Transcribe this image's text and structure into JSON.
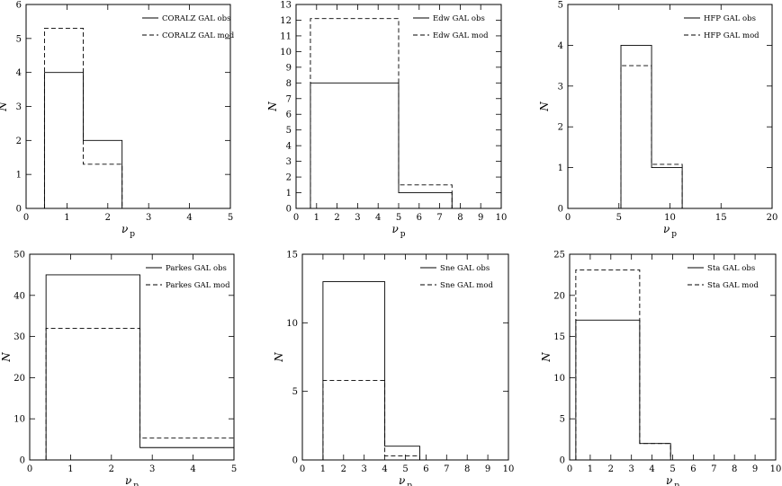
{
  "chart_data": [
    {
      "type": "histogram",
      "xlim": [
        0,
        5
      ],
      "ylim": [
        0,
        6
      ],
      "xticks": [
        0,
        1,
        2,
        3,
        4,
        5
      ],
      "yticks": [
        0,
        1,
        2,
        3,
        4,
        5,
        6
      ],
      "xlabel": "νp",
      "ylabel": "N",
      "legend": "top-right",
      "series": [
        {
          "name": "CORALZ GAL obs",
          "style": "solid",
          "bins": [
            [
              0.45,
              1.4,
              4
            ],
            [
              1.4,
              2.35,
              2
            ]
          ]
        },
        {
          "name": "CORALZ GAL mod",
          "style": "dashed",
          "bins": [
            [
              0.45,
              1.4,
              5.3
            ],
            [
              1.4,
              2.35,
              1.3
            ],
            [
              2.35,
              3.3,
              0
            ]
          ]
        }
      ]
    },
    {
      "type": "histogram",
      "xlim": [
        0,
        10
      ],
      "ylim": [
        0,
        13
      ],
      "xticks": [
        0,
        1,
        2,
        3,
        4,
        5,
        6,
        7,
        8,
        9,
        10
      ],
      "yticks": [
        0,
        1,
        2,
        3,
        4,
        5,
        6,
        7,
        8,
        9,
        10,
        11,
        12,
        13
      ],
      "xlabel": "νp",
      "ylabel": "N",
      "legend": "top-right",
      "series": [
        {
          "name": "Edw GAL obs",
          "style": "solid",
          "bins": [
            [
              0.7,
              5.0,
              8
            ],
            [
              5.0,
              7.6,
              1
            ]
          ]
        },
        {
          "name": "Edw GAL mod",
          "style": "dashed",
          "bins": [
            [
              0.7,
              5.0,
              12.1
            ],
            [
              5.0,
              7.6,
              1.5
            ]
          ]
        }
      ]
    },
    {
      "type": "histogram",
      "xlim": [
        0,
        20
      ],
      "ylim": [
        0,
        5
      ],
      "xticks": [
        0,
        5,
        10,
        15,
        20
      ],
      "yticks": [
        0,
        1,
        2,
        3,
        4,
        5
      ],
      "xlabel": "νp",
      "ylabel": "N",
      "legend": "top-right",
      "series": [
        {
          "name": "HFP GAL obs",
          "style": "solid",
          "bins": [
            [
              5.2,
              8.2,
              4
            ],
            [
              8.2,
              11.2,
              1
            ]
          ]
        },
        {
          "name": "HFP GAL mod",
          "style": "dashed",
          "bins": [
            [
              5.2,
              8.2,
              3.5
            ],
            [
              8.2,
              11.2,
              1.08
            ]
          ]
        }
      ]
    },
    {
      "type": "histogram",
      "xlim": [
        0,
        5
      ],
      "ylim": [
        0,
        50
      ],
      "xticks": [
        0,
        1,
        2,
        3,
        4,
        5
      ],
      "yticks": [
        0,
        10,
        20,
        30,
        40,
        50
      ],
      "xlabel": "νp",
      "ylabel": "N",
      "legend": "top-right",
      "series": [
        {
          "name": "Parkes GAL obs",
          "style": "solid",
          "bins": [
            [
              0.4,
              2.7,
              45
            ],
            [
              2.7,
              5.0,
              3
            ]
          ]
        },
        {
          "name": "Parkes GAL mod",
          "style": "dashed",
          "bins": [
            [
              0.4,
              2.7,
              32
            ],
            [
              2.7,
              5.0,
              5.3
            ]
          ]
        }
      ]
    },
    {
      "type": "histogram",
      "xlim": [
        0,
        10
      ],
      "ylim": [
        0,
        15
      ],
      "xticks": [
        0,
        1,
        2,
        3,
        4,
        5,
        6,
        7,
        8,
        9,
        10
      ],
      "yticks": [
        0,
        5,
        10,
        15
      ],
      "xlabel": "νp",
      "ylabel": "N",
      "legend": "top-right",
      "series": [
        {
          "name": "Sne GAL obs",
          "style": "solid",
          "bins": [
            [
              1.0,
              4.0,
              13
            ],
            [
              4.0,
              5.7,
              1
            ],
            [
              5.7,
              7.4,
              0
            ]
          ]
        },
        {
          "name": "Sne GAL mod",
          "style": "dashed",
          "bins": [
            [
              1.0,
              4.0,
              5.8
            ],
            [
              4.0,
              5.7,
              0.3
            ],
            [
              5.7,
              7.4,
              0
            ]
          ]
        }
      ]
    },
    {
      "type": "histogram",
      "xlim": [
        0,
        10
      ],
      "ylim": [
        0,
        25
      ],
      "xticks": [
        0,
        1,
        2,
        3,
        4,
        5,
        6,
        7,
        8,
        9,
        10
      ],
      "yticks": [
        0,
        5,
        10,
        15,
        20,
        25
      ],
      "xlabel": "νp",
      "ylabel": "N",
      "legend": "top-right",
      "series": [
        {
          "name": "Sta GAL obs",
          "style": "solid",
          "bins": [
            [
              0.3,
              3.4,
              17
            ],
            [
              3.4,
              4.9,
              2
            ],
            [
              4.9,
              6.4,
              0
            ]
          ]
        },
        {
          "name": "Sta GAL mod",
          "style": "dashed",
          "bins": [
            [
              0.3,
              3.4,
              23.1
            ],
            [
              3.4,
              4.9,
              2
            ],
            [
              4.9,
              6.4,
              0
            ]
          ]
        }
      ]
    }
  ]
}
